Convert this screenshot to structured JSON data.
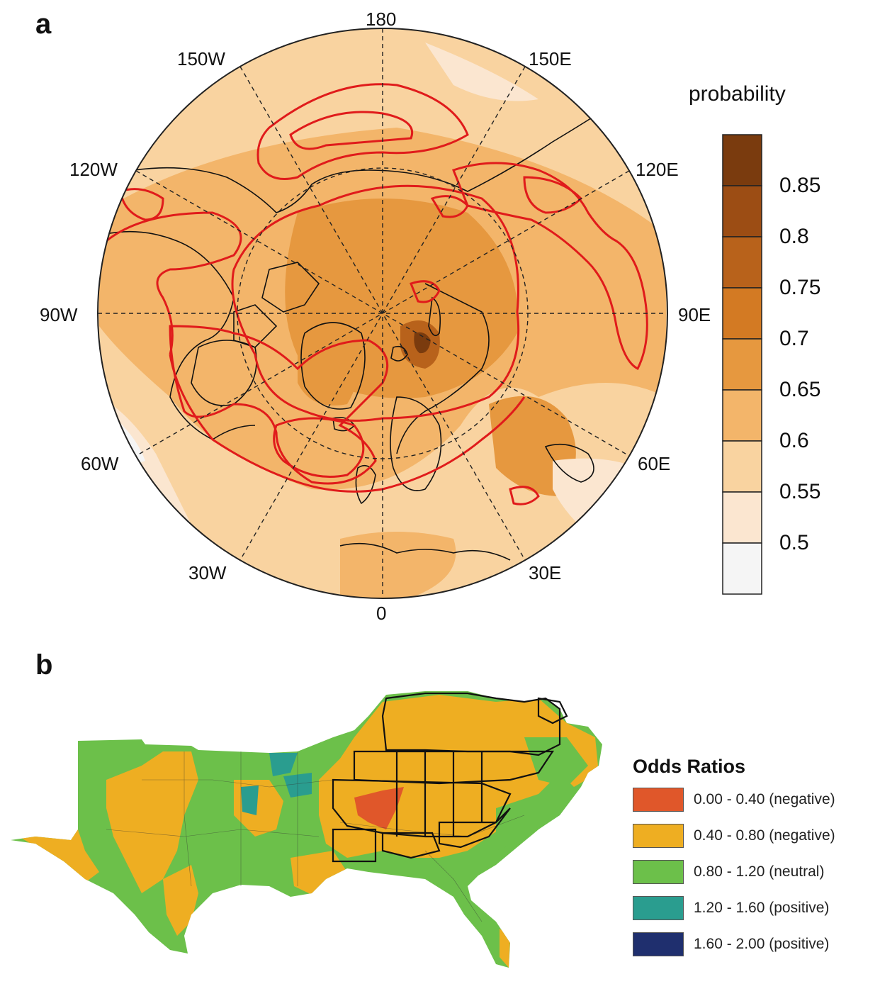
{
  "panel_a": {
    "letter": "a",
    "longitude_labels": {
      "180": "180",
      "150W": "150W",
      "150E": "150E",
      "120W": "120W",
      "120E": "120E",
      "90W": "90W",
      "90E": "90E",
      "60W": "60W",
      "60E": "60E",
      "30W": "30W",
      "30E": "30E",
      "0": "0"
    },
    "colorbar": {
      "title": "probability",
      "ticks": [
        "0.85",
        "0.8",
        "0.75",
        "0.7",
        "0.65",
        "0.6",
        "0.55",
        "0.5"
      ],
      "colors": [
        "#7a3b0e",
        "#9c4d14",
        "#b8621b",
        "#d37a23",
        "#e6983f",
        "#f3b56a",
        "#f9d3a0",
        "#fbe6d0",
        "#f5f5f5"
      ]
    },
    "contour_color": "#e01b1b"
  },
  "panel_b": {
    "letter": "b",
    "legend": {
      "title": "Odds Ratios",
      "items": [
        {
          "label": "0.00 - 0.40 (negative)",
          "color": "#e0572a"
        },
        {
          "label": "0.40 - 0.80 (negative)",
          "color": "#eeae22"
        },
        {
          "label": "0.80 - 1.20 (neutral)",
          "color": "#6cc04a"
        },
        {
          "label": "1.20 - 1.60 (positive)",
          "color": "#2a9d8f"
        },
        {
          "label": "1.60 - 2.00 (positive)",
          "color": "#1f2f6e"
        }
      ]
    }
  }
}
